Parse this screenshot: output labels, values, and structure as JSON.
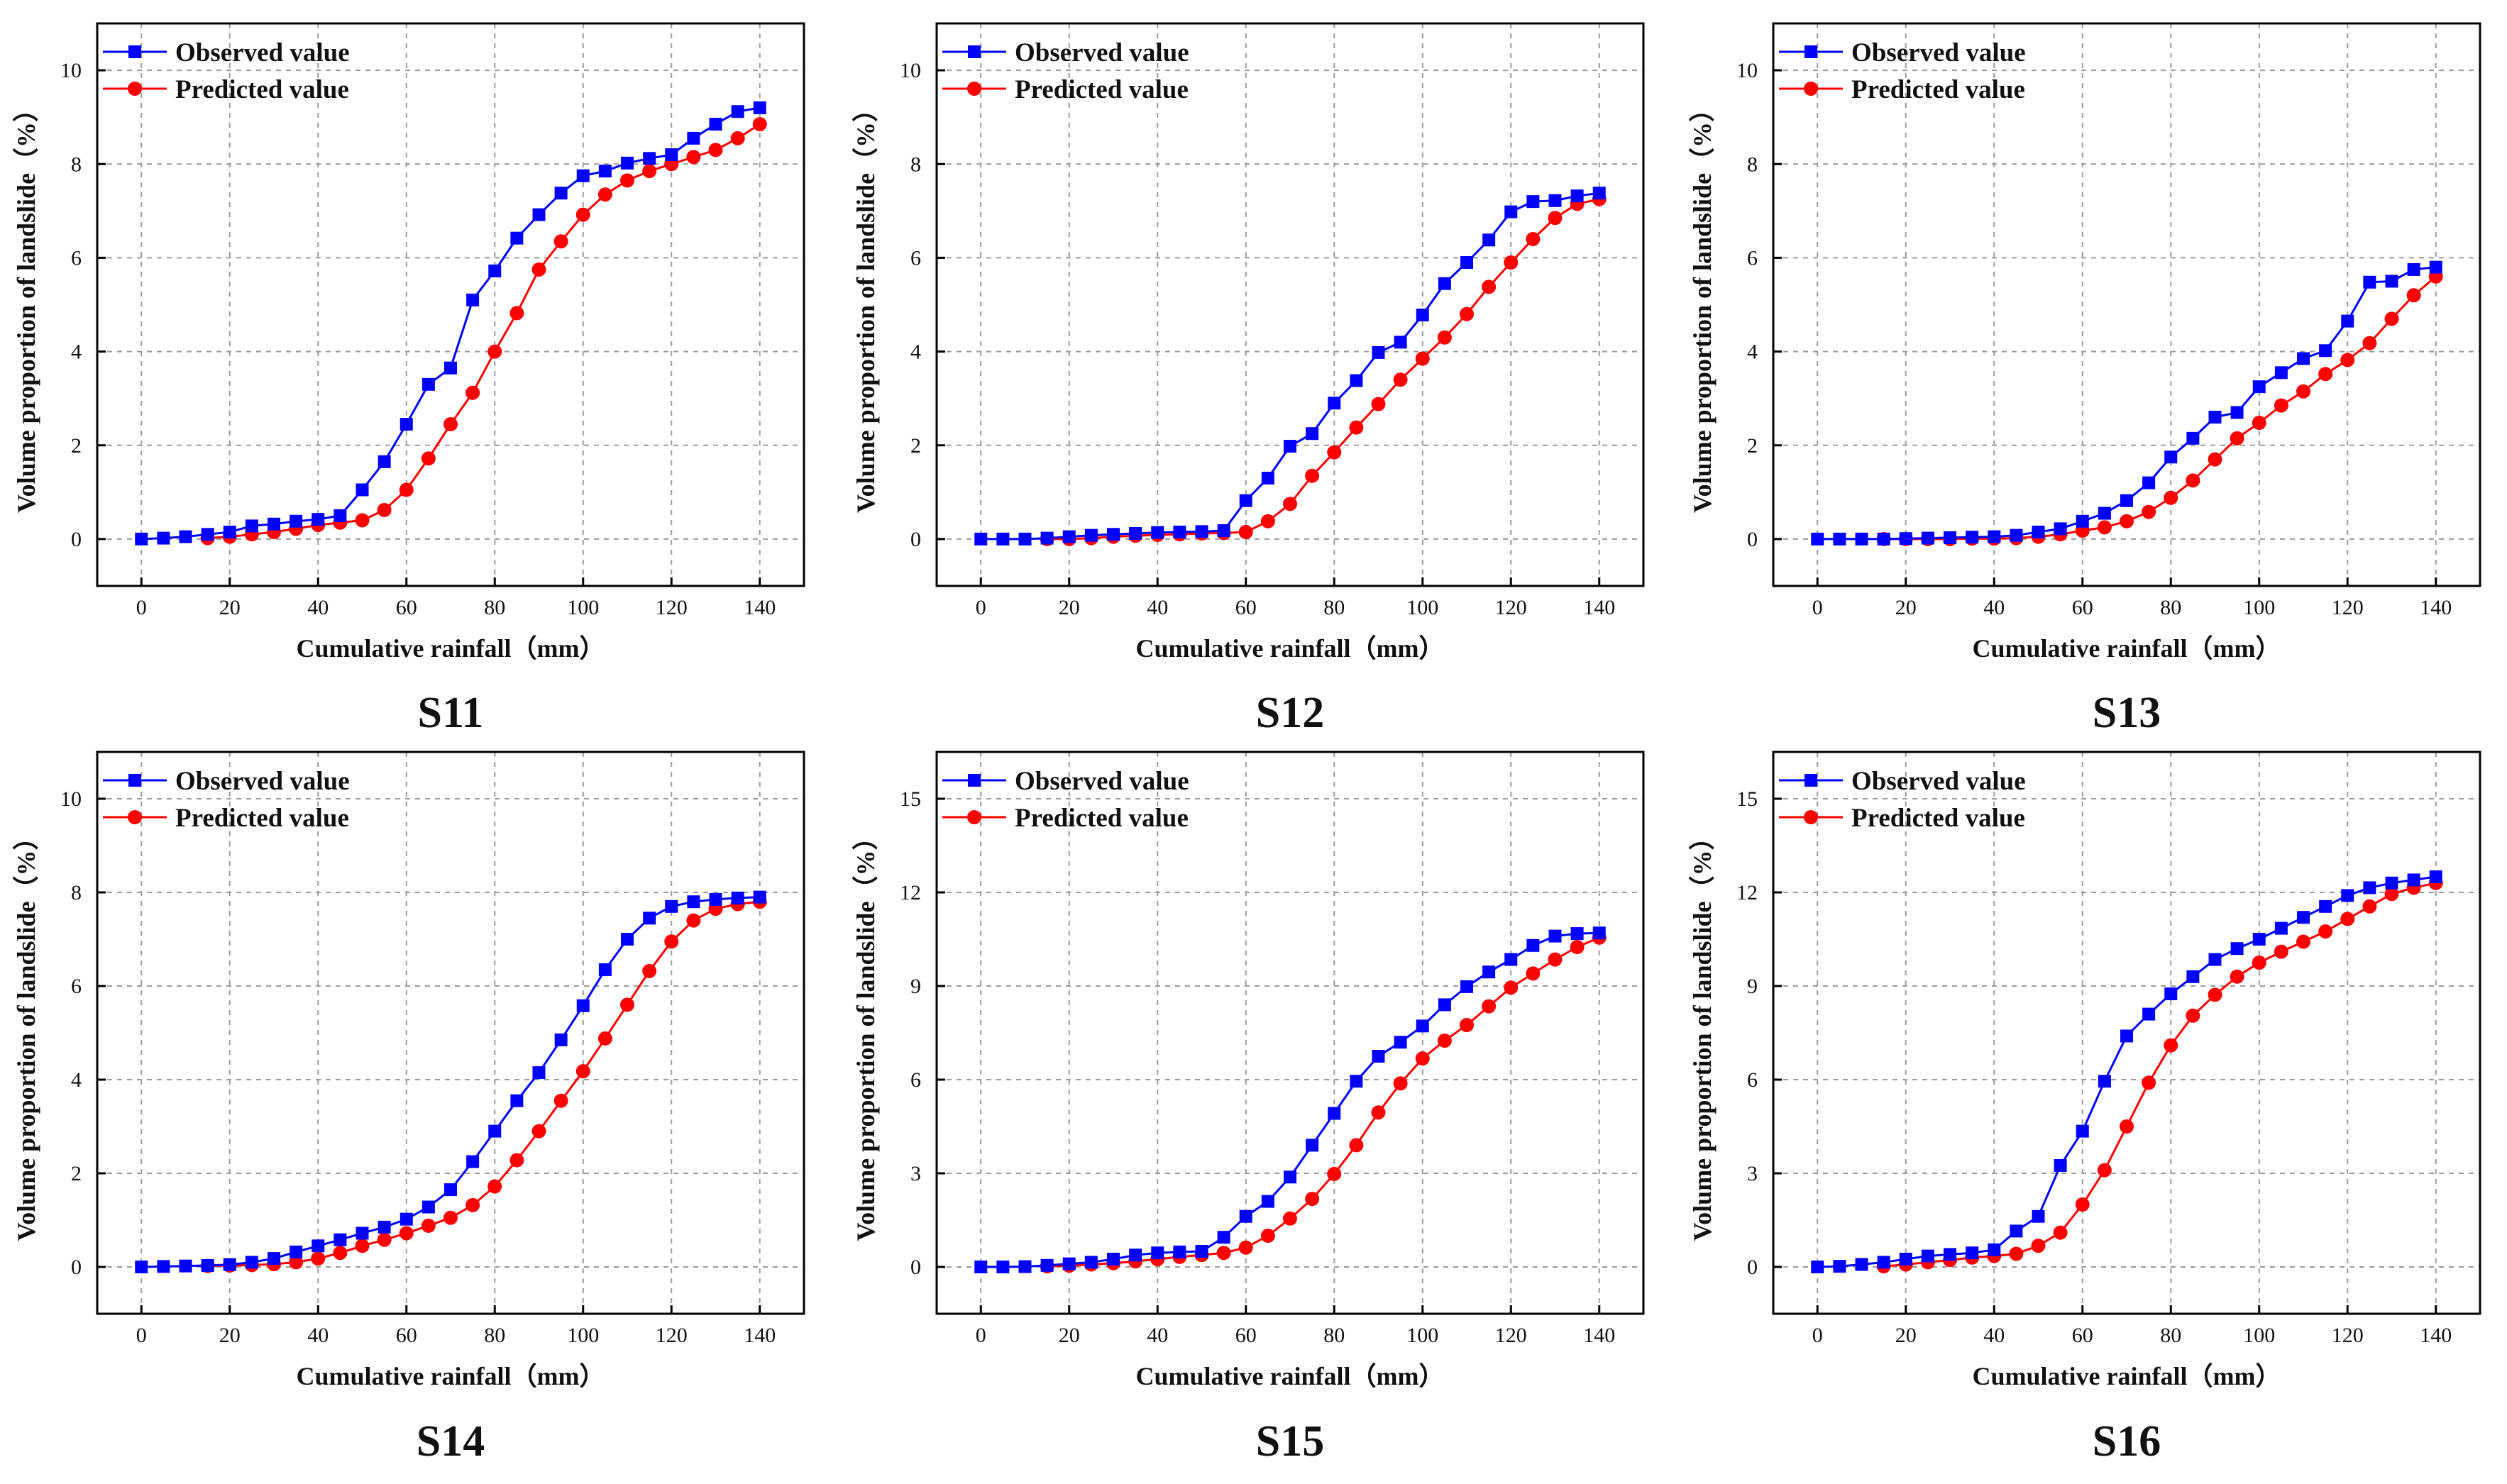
{
  "figure": {
    "colors": {
      "observed": "#0000ff",
      "predicted": "#ff0000",
      "grid": "#9a9a9a",
      "axis": "#000000"
    }
  },
  "chart_data": [
    {
      "type": "line",
      "panel": "S11",
      "xlabel": "Cumulative rainfall（mm）",
      "ylabel": "Volume proportion of landslide（%）",
      "xlim": [
        -10,
        150
      ],
      "ylim": [
        -1,
        11
      ],
      "xticks": [
        0,
        20,
        40,
        60,
        80,
        100,
        120,
        140
      ],
      "yticks": [
        0,
        2,
        4,
        6,
        8,
        10
      ],
      "grid": true,
      "legend": "top-left",
      "series": [
        {
          "name": "Observed value",
          "marker": "square",
          "x": [
            0,
            5,
            10,
            15,
            20,
            25,
            30,
            35,
            40,
            45,
            50,
            55,
            60,
            65,
            70,
            75,
            80,
            85,
            90,
            95,
            100,
            105,
            110,
            115,
            120,
            125,
            130,
            135,
            140
          ],
          "y": [
            0,
            0.02,
            0.05,
            0.1,
            0.15,
            0.28,
            0.32,
            0.38,
            0.42,
            0.5,
            1.05,
            1.65,
            2.45,
            3.3,
            3.65,
            5.1,
            5.72,
            6.42,
            6.92,
            7.38,
            7.75,
            7.85,
            8.02,
            8.12,
            8.2,
            8.55,
            8.85,
            9.12,
            9.2
          ]
        },
        {
          "name": "Predicted value",
          "marker": "circle",
          "x": [
            15,
            20,
            25,
            30,
            35,
            40,
            45,
            50,
            55,
            60,
            65,
            70,
            75,
            80,
            85,
            90,
            95,
            100,
            105,
            110,
            115,
            120,
            125,
            130,
            135,
            140
          ],
          "y": [
            0.02,
            0.05,
            0.1,
            0.15,
            0.22,
            0.3,
            0.35,
            0.4,
            0.62,
            1.05,
            1.72,
            2.45,
            3.12,
            4.0,
            4.82,
            5.75,
            6.35,
            6.92,
            7.35,
            7.65,
            7.85,
            8.0,
            8.15,
            8.3,
            8.55,
            8.85
          ]
        }
      ]
    },
    {
      "type": "line",
      "panel": "S12",
      "xlabel": "Cumulative rainfall（mm）",
      "ylabel": "Volume proportion of landslide（%）",
      "xlim": [
        -10,
        150
      ],
      "ylim": [
        -1,
        11
      ],
      "xticks": [
        0,
        20,
        40,
        60,
        80,
        100,
        120,
        140
      ],
      "yticks": [
        0,
        2,
        4,
        6,
        8,
        10
      ],
      "grid": true,
      "legend": "top-left",
      "series": [
        {
          "name": "Observed value",
          "marker": "square",
          "x": [
            0,
            5,
            10,
            15,
            20,
            25,
            30,
            35,
            40,
            45,
            50,
            55,
            60,
            65,
            70,
            75,
            80,
            85,
            90,
            95,
            100,
            105,
            110,
            115,
            120,
            125,
            130,
            135,
            140
          ],
          "y": [
            0,
            0,
            0,
            0.02,
            0.05,
            0.08,
            0.1,
            0.12,
            0.14,
            0.15,
            0.16,
            0.18,
            0.82,
            1.3,
            1.98,
            2.25,
            2.9,
            3.38,
            3.98,
            4.2,
            4.78,
            5.45,
            5.9,
            6.38,
            6.98,
            7.2,
            7.22,
            7.32,
            7.38
          ]
        },
        {
          "name": "Predicted value",
          "marker": "circle",
          "x": [
            15,
            20,
            25,
            30,
            35,
            40,
            45,
            50,
            55,
            60,
            65,
            70,
            75,
            80,
            85,
            90,
            95,
            100,
            105,
            110,
            115,
            120,
            125,
            130,
            135,
            140
          ],
          "y": [
            0,
            0,
            0.02,
            0.05,
            0.07,
            0.09,
            0.1,
            0.12,
            0.13,
            0.15,
            0.38,
            0.75,
            1.35,
            1.85,
            2.38,
            2.88,
            3.4,
            3.85,
            4.3,
            4.8,
            5.38,
            5.9,
            6.4,
            6.85,
            7.15,
            7.25
          ]
        }
      ]
    },
    {
      "type": "line",
      "panel": "S13",
      "xlabel": "Cumulative rainfall（mm）",
      "ylabel": "Volume proportion of landslide（%）",
      "xlim": [
        -10,
        150
      ],
      "ylim": [
        -1,
        11
      ],
      "xticks": [
        0,
        20,
        40,
        60,
        80,
        100,
        120,
        140
      ],
      "yticks": [
        0,
        2,
        4,
        6,
        8,
        10
      ],
      "grid": true,
      "legend": "top-left",
      "series": [
        {
          "name": "Observed value",
          "marker": "square",
          "x": [
            0,
            5,
            10,
            15,
            20,
            25,
            30,
            35,
            40,
            45,
            50,
            55,
            60,
            65,
            70,
            75,
            80,
            85,
            90,
            95,
            100,
            105,
            110,
            115,
            120,
            125,
            130,
            135,
            140
          ],
          "y": [
            0,
            0,
            0,
            0,
            0.01,
            0.02,
            0.03,
            0.04,
            0.05,
            0.08,
            0.15,
            0.22,
            0.38,
            0.55,
            0.82,
            1.2,
            1.75,
            2.15,
            2.6,
            2.7,
            3.25,
            3.55,
            3.85,
            4.02,
            4.65,
            5.48,
            5.5,
            5.75,
            5.8
          ]
        },
        {
          "name": "Predicted value",
          "marker": "circle",
          "x": [
            15,
            20,
            25,
            30,
            35,
            40,
            45,
            50,
            55,
            60,
            65,
            70,
            75,
            80,
            85,
            90,
            95,
            100,
            105,
            110,
            115,
            120,
            125,
            130,
            135,
            140
          ],
          "y": [
            0,
            0,
            0,
            0,
            0.01,
            0.01,
            0.02,
            0.05,
            0.1,
            0.18,
            0.25,
            0.38,
            0.58,
            0.88,
            1.25,
            1.7,
            2.15,
            2.48,
            2.85,
            3.15,
            3.52,
            3.82,
            4.18,
            4.7,
            5.2,
            5.6
          ]
        }
      ]
    },
    {
      "type": "line",
      "panel": "S14",
      "xlabel": "Cumulative rainfall（mm）",
      "ylabel": "Volume proportion of landslide（%）",
      "xlim": [
        -10,
        150
      ],
      "ylim": [
        -1,
        11
      ],
      "xticks": [
        0,
        20,
        40,
        60,
        80,
        100,
        120,
        140
      ],
      "yticks": [
        0,
        2,
        4,
        6,
        8,
        10
      ],
      "grid": true,
      "legend": "top-left",
      "series": [
        {
          "name": "Observed value",
          "marker": "square",
          "x": [
            0,
            5,
            10,
            15,
            20,
            25,
            30,
            35,
            40,
            45,
            50,
            55,
            60,
            65,
            70,
            75,
            80,
            85,
            90,
            95,
            100,
            105,
            110,
            115,
            120,
            125,
            130,
            135,
            140
          ],
          "y": [
            0,
            0.01,
            0.02,
            0.03,
            0.05,
            0.1,
            0.18,
            0.32,
            0.45,
            0.58,
            0.72,
            0.85,
            1.02,
            1.28,
            1.65,
            2.25,
            2.9,
            3.55,
            4.15,
            4.85,
            5.58,
            6.35,
            7.0,
            7.45,
            7.7,
            7.8,
            7.85,
            7.88,
            7.9
          ]
        },
        {
          "name": "Predicted value",
          "marker": "circle",
          "x": [
            15,
            20,
            25,
            30,
            35,
            40,
            45,
            50,
            55,
            60,
            65,
            70,
            75,
            80,
            85,
            90,
            95,
            100,
            105,
            110,
            115,
            120,
            125,
            130,
            135,
            140
          ],
          "y": [
            0.02,
            0.03,
            0.04,
            0.06,
            0.1,
            0.18,
            0.3,
            0.45,
            0.58,
            0.72,
            0.88,
            1.05,
            1.32,
            1.72,
            2.28,
            2.9,
            3.55,
            4.18,
            4.88,
            5.6,
            6.32,
            6.95,
            7.4,
            7.65,
            7.75,
            7.8
          ]
        }
      ]
    },
    {
      "type": "line",
      "panel": "S15",
      "xlabel": "Cumulative rainfall（mm）",
      "ylabel": "Volume proportion of landslide（%）",
      "xlim": [
        -10,
        150
      ],
      "ylim": [
        -1.5,
        16.5
      ],
      "xticks": [
        0,
        20,
        40,
        60,
        80,
        100,
        120,
        140
      ],
      "yticks": [
        0,
        3,
        6,
        9,
        12,
        15
      ],
      "grid": true,
      "legend": "top-left",
      "series": [
        {
          "name": "Observed value",
          "marker": "square",
          "x": [
            0,
            5,
            10,
            15,
            20,
            25,
            30,
            35,
            40,
            45,
            50,
            55,
            60,
            65,
            70,
            75,
            80,
            85,
            90,
            95,
            100,
            105,
            110,
            115,
            120,
            125,
            130,
            135,
            140
          ],
          "y": [
            0,
            0,
            0.01,
            0.05,
            0.1,
            0.15,
            0.25,
            0.38,
            0.45,
            0.48,
            0.5,
            0.95,
            1.62,
            2.1,
            2.88,
            3.9,
            4.92,
            5.95,
            6.75,
            7.2,
            7.72,
            8.4,
            8.98,
            9.45,
            9.85,
            10.3,
            10.6,
            10.68,
            10.7
          ]
        },
        {
          "name": "Predicted value",
          "marker": "circle",
          "x": [
            15,
            20,
            25,
            30,
            35,
            40,
            45,
            50,
            55,
            60,
            65,
            70,
            75,
            80,
            85,
            90,
            95,
            100,
            105,
            110,
            115,
            120,
            125,
            130,
            135,
            140
          ],
          "y": [
            0.02,
            0.04,
            0.08,
            0.12,
            0.18,
            0.25,
            0.32,
            0.38,
            0.45,
            0.62,
            1.0,
            1.55,
            2.18,
            2.98,
            3.9,
            4.95,
            5.88,
            6.68,
            7.25,
            7.75,
            8.35,
            8.95,
            9.4,
            9.85,
            10.25,
            10.55
          ]
        }
      ]
    },
    {
      "type": "line",
      "panel": "S16",
      "xlabel": "Cumulative rainfall（mm）",
      "ylabel": "Volume proportion of landslide（%）",
      "xlim": [
        -10,
        150
      ],
      "ylim": [
        -1.5,
        16.5
      ],
      "xticks": [
        0,
        20,
        40,
        60,
        80,
        100,
        120,
        140
      ],
      "yticks": [
        0,
        3,
        6,
        9,
        12,
        15
      ],
      "grid": true,
      "legend": "top-left",
      "series": [
        {
          "name": "Observed value",
          "marker": "square",
          "x": [
            0,
            5,
            10,
            15,
            20,
            25,
            30,
            35,
            40,
            45,
            50,
            55,
            60,
            65,
            70,
            75,
            80,
            85,
            90,
            95,
            100,
            105,
            110,
            115,
            120,
            125,
            130,
            135,
            140
          ],
          "y": [
            0,
            0.02,
            0.08,
            0.15,
            0.25,
            0.35,
            0.4,
            0.45,
            0.55,
            1.15,
            1.62,
            3.25,
            4.35,
            5.95,
            7.4,
            8.1,
            8.75,
            9.3,
            9.85,
            10.2,
            10.5,
            10.85,
            11.2,
            11.55,
            11.9,
            12.15,
            12.3,
            12.4,
            12.5
          ]
        },
        {
          "name": "Predicted value",
          "marker": "circle",
          "x": [
            15,
            20,
            25,
            30,
            35,
            40,
            45,
            50,
            55,
            60,
            65,
            70,
            75,
            80,
            85,
            90,
            95,
            100,
            105,
            110,
            115,
            120,
            125,
            130,
            135,
            140
          ],
          "y": [
            0.02,
            0.08,
            0.15,
            0.22,
            0.3,
            0.35,
            0.42,
            0.68,
            1.1,
            2.0,
            3.1,
            4.5,
            5.9,
            7.1,
            8.05,
            8.72,
            9.3,
            9.75,
            10.1,
            10.42,
            10.75,
            11.15,
            11.55,
            11.95,
            12.15,
            12.3
          ]
        }
      ]
    }
  ]
}
